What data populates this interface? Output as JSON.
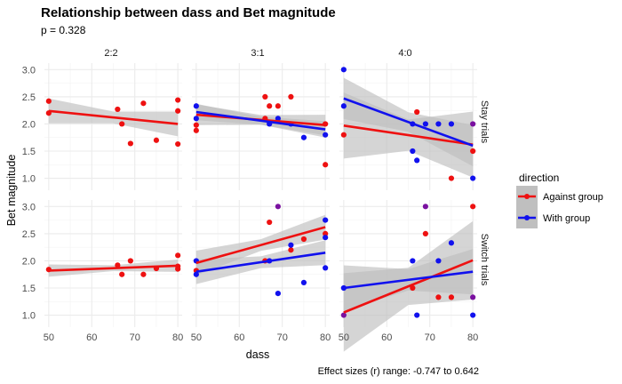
{
  "chart_data": {
    "type": "scatter",
    "title": "Relationship between dass and Bet magnitude",
    "subtitle": "p = 0.328",
    "caption": "Effect sizes (r) range: -0.747 to 0.642",
    "xlabel": "dass",
    "ylabel": "Bet magnitude",
    "xlim": [
      49,
      81
    ],
    "ylim": [
      0.78,
      3.12
    ],
    "xticks": [
      50,
      60,
      70,
      80
    ],
    "yticks": [
      1.0,
      1.5,
      2.0,
      2.5,
      3.0
    ],
    "xtick_labels": [
      "50",
      "60",
      "70",
      "80"
    ],
    "ytick_labels": [
      "1.0",
      "1.5",
      "2.0",
      "2.5",
      "3.0"
    ],
    "grid": true,
    "column_facets": [
      "2:2",
      "3:1",
      "4:0"
    ],
    "row_facets": [
      "Stay trials",
      "Switch trials"
    ],
    "legend": {
      "title": "direction",
      "position": "right",
      "entries": [
        {
          "label": "Against group",
          "color": "#ee1111"
        },
        {
          "label": "With group",
          "color": "#1111ee"
        }
      ]
    },
    "colors": {
      "against": "#ee1111",
      "with": "#1111ee",
      "band": "#bfbfbf",
      "panel_bg": "#ffffff",
      "grid": "#ebebeb"
    },
    "panels": [
      {
        "row": 0,
        "col": 0,
        "points": [
          {
            "dir": "against",
            "x": 50,
            "y": 2.42
          },
          {
            "dir": "against",
            "x": 50,
            "y": 2.2
          },
          {
            "dir": "against",
            "x": 66,
            "y": 2.27
          },
          {
            "dir": "against",
            "x": 67,
            "y": 2.0
          },
          {
            "dir": "against",
            "x": 69,
            "y": 1.64
          },
          {
            "dir": "against",
            "x": 72,
            "y": 2.38
          },
          {
            "dir": "against",
            "x": 75,
            "y": 1.7
          },
          {
            "dir": "against",
            "x": 80,
            "y": 2.44
          },
          {
            "dir": "against",
            "x": 80,
            "y": 2.24
          },
          {
            "dir": "against",
            "x": 80,
            "y": 1.63
          }
        ],
        "fits": [
          {
            "dir": "against",
            "x0": 50,
            "y0": 2.24,
            "x1": 80,
            "y1": 2.0,
            "se": 0.12
          }
        ]
      },
      {
        "row": 0,
        "col": 1,
        "points": [
          {
            "dir": "with",
            "x": 50,
            "y": 2.33
          },
          {
            "dir": "with",
            "x": 50,
            "y": 2.1
          },
          {
            "dir": "against",
            "x": 50,
            "y": 1.98
          },
          {
            "dir": "against",
            "x": 50,
            "y": 1.88
          },
          {
            "dir": "against",
            "x": 66,
            "y": 2.5
          },
          {
            "dir": "against",
            "x": 66,
            "y": 2.1
          },
          {
            "dir": "against",
            "x": 67,
            "y": 2.33
          },
          {
            "dir": "with",
            "x": 67,
            "y": 2.0
          },
          {
            "dir": "against",
            "x": 69,
            "y": 2.33
          },
          {
            "dir": "with",
            "x": 69,
            "y": 2.1
          },
          {
            "dir": "against",
            "x": 72,
            "y": 2.5
          },
          {
            "dir": "with",
            "x": 72,
            "y": 2.0
          },
          {
            "dir": "with",
            "x": 75,
            "y": 1.75
          },
          {
            "dir": "against",
            "x": 80,
            "y": 2.0
          },
          {
            "dir": "with",
            "x": 80,
            "y": 1.8
          },
          {
            "dir": "against",
            "x": 80,
            "y": 1.25
          }
        ],
        "fits": [
          {
            "dir": "against",
            "x0": 50,
            "y0": 2.17,
            "x1": 80,
            "y1": 1.98,
            "se": 0.1
          },
          {
            "dir": "with",
            "x0": 50,
            "y0": 2.22,
            "x1": 80,
            "y1": 1.9,
            "se": 0.08
          }
        ]
      },
      {
        "row": 0,
        "col": 2,
        "points": [
          {
            "dir": "with",
            "x": 50,
            "y": 3.0
          },
          {
            "dir": "with",
            "x": 50,
            "y": 2.33
          },
          {
            "dir": "against",
            "x": 50,
            "y": 1.8
          },
          {
            "dir": "with",
            "x": 66,
            "y": 2.0
          },
          {
            "dir": "with",
            "x": 66,
            "y": 1.5
          },
          {
            "dir": "against",
            "x": 67,
            "y": 2.22
          },
          {
            "dir": "with",
            "x": 67,
            "y": 1.33
          },
          {
            "dir": "with",
            "x": 69,
            "y": 2.0
          },
          {
            "dir": "with",
            "x": 72,
            "y": 2.0
          },
          {
            "dir": "with",
            "x": 75,
            "y": 2.0
          },
          {
            "dir": "against",
            "x": 75,
            "y": 1.0
          },
          {
            "dir": "mixed",
            "x": 80,
            "y": 2.0
          },
          {
            "dir": "against",
            "x": 80,
            "y": 1.5
          },
          {
            "dir": "with",
            "x": 80,
            "y": 1.0
          }
        ],
        "fits": [
          {
            "dir": "against",
            "x0": 50,
            "y0": 1.97,
            "x1": 80,
            "y1": 1.62,
            "se": 0.32
          },
          {
            "dir": "with",
            "x0": 50,
            "y0": 2.47,
            "x1": 80,
            "y1": 1.6,
            "se": 0.2
          }
        ]
      },
      {
        "row": 1,
        "col": 0,
        "points": [
          {
            "dir": "against",
            "x": 50,
            "y": 1.84
          },
          {
            "dir": "against",
            "x": 66,
            "y": 1.92
          },
          {
            "dir": "against",
            "x": 67,
            "y": 1.75
          },
          {
            "dir": "against",
            "x": 69,
            "y": 2.0
          },
          {
            "dir": "against",
            "x": 72,
            "y": 1.75
          },
          {
            "dir": "against",
            "x": 75,
            "y": 1.86
          },
          {
            "dir": "against",
            "x": 80,
            "y": 2.1
          },
          {
            "dir": "against",
            "x": 80,
            "y": 1.9
          },
          {
            "dir": "against",
            "x": 80,
            "y": 1.85
          }
        ],
        "fits": [
          {
            "dir": "against",
            "x0": 50,
            "y0": 1.82,
            "x1": 80,
            "y1": 1.91,
            "se": 0.06
          }
        ]
      },
      {
        "row": 1,
        "col": 1,
        "points": [
          {
            "dir": "with",
            "x": 50,
            "y": 2.0
          },
          {
            "dir": "against",
            "x": 50,
            "y": 1.82
          },
          {
            "dir": "with",
            "x": 50,
            "y": 1.75
          },
          {
            "dir": "against",
            "x": 66,
            "y": 2.0
          },
          {
            "dir": "against",
            "x": 67,
            "y": 2.71
          },
          {
            "dir": "with",
            "x": 67,
            "y": 2.0
          },
          {
            "dir": "mixed",
            "x": 69,
            "y": 3.0
          },
          {
            "dir": "with",
            "x": 69,
            "y": 1.4
          },
          {
            "dir": "against",
            "x": 72,
            "y": 2.2
          },
          {
            "dir": "with",
            "x": 72,
            "y": 2.29
          },
          {
            "dir": "against",
            "x": 75,
            "y": 2.4
          },
          {
            "dir": "with",
            "x": 75,
            "y": 1.6
          },
          {
            "dir": "with",
            "x": 80,
            "y": 2.75
          },
          {
            "dir": "against",
            "x": 80,
            "y": 2.5
          },
          {
            "dir": "with",
            "x": 80,
            "y": 2.43
          },
          {
            "dir": "with",
            "x": 80,
            "y": 1.87
          }
        ],
        "fits": [
          {
            "dir": "against",
            "x0": 50,
            "y0": 1.96,
            "x1": 80,
            "y1": 2.62,
            "se": 0.12
          },
          {
            "dir": "with",
            "x0": 50,
            "y0": 1.8,
            "x1": 80,
            "y1": 2.15,
            "se": 0.12
          }
        ]
      },
      {
        "row": 1,
        "col": 2,
        "points": [
          {
            "dir": "with",
            "x": 50,
            "y": 1.5
          },
          {
            "dir": "mixed",
            "x": 50,
            "y": 1.0
          },
          {
            "dir": "with",
            "x": 66,
            "y": 2.0
          },
          {
            "dir": "against",
            "x": 66,
            "y": 1.5
          },
          {
            "dir": "with",
            "x": 67,
            "y": 1.0
          },
          {
            "dir": "mixed",
            "x": 69,
            "y": 3.0
          },
          {
            "dir": "against",
            "x": 69,
            "y": 2.5
          },
          {
            "dir": "with",
            "x": 72,
            "y": 2.0
          },
          {
            "dir": "against",
            "x": 72,
            "y": 1.33
          },
          {
            "dir": "with",
            "x": 75,
            "y": 2.33
          },
          {
            "dir": "against",
            "x": 75,
            "y": 1.33
          },
          {
            "dir": "against",
            "x": 80,
            "y": 3.0
          },
          {
            "dir": "mixed",
            "x": 80,
            "y": 1.33
          },
          {
            "dir": "with",
            "x": 80,
            "y": 1.0
          }
        ],
        "fits": [
          {
            "dir": "against",
            "x0": 50,
            "y0": 1.05,
            "x1": 80,
            "y1": 2.01,
            "se": 0.38
          },
          {
            "dir": "with",
            "x0": 50,
            "y0": 1.5,
            "x1": 80,
            "y1": 1.8,
            "se": 0.22
          }
        ]
      }
    ]
  }
}
